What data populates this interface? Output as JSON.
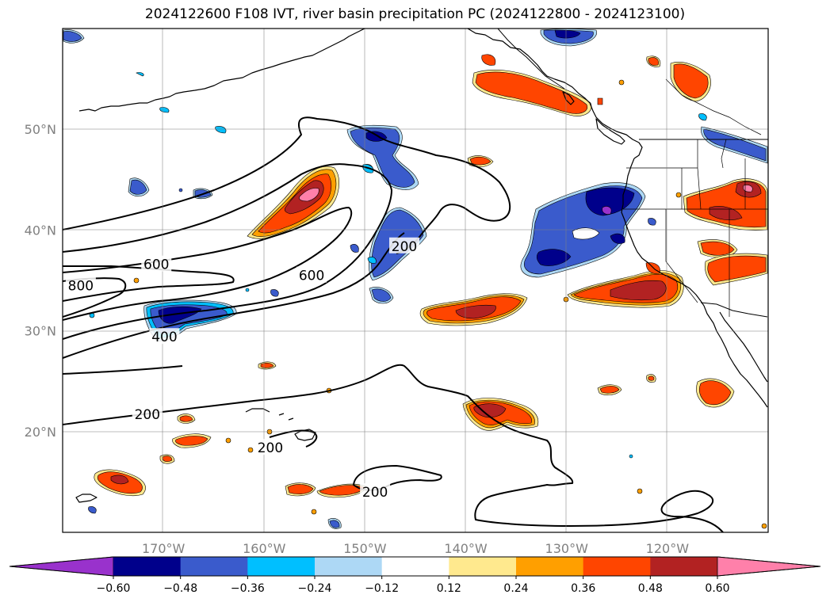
{
  "title": "2024122600 F108 IVT, river basin precipitation PC (2024122800 - 2024123100)",
  "map": {
    "lon_range": [
      -180,
      -110
    ],
    "lat_range": [
      10,
      60
    ],
    "lat_ticks": [
      {
        "value": 20,
        "label": "20°N"
      },
      {
        "value": 30,
        "label": "30°N"
      },
      {
        "value": 40,
        "label": "40°N"
      },
      {
        "value": 50,
        "label": "50°N"
      }
    ],
    "lon_ticks": [
      {
        "value": -170,
        "label": "170°W"
      },
      {
        "value": -160,
        "label": "160°W"
      },
      {
        "value": -150,
        "label": "150°W"
      },
      {
        "value": -140,
        "label": "140°W"
      },
      {
        "value": -130,
        "label": "130°W"
      },
      {
        "value": -120,
        "label": "120°W"
      }
    ],
    "grid": true
  },
  "ivt_contour_labels": [
    {
      "text": "800",
      "lon": -178.2,
      "lat": 34.5
    },
    {
      "text": "600",
      "lon": -170.7,
      "lat": 36.6
    },
    {
      "text": "600",
      "lon": -155.3,
      "lat": 35.5
    },
    {
      "text": "400",
      "lon": -169.9,
      "lat": 29.4
    },
    {
      "text": "200",
      "lon": -146.1,
      "lat": 38.4
    },
    {
      "text": "200",
      "lon": -171.6,
      "lat": 21.7
    },
    {
      "text": "200",
      "lon": -159.4,
      "lat": 18.4
    },
    {
      "text": "200",
      "lon": -149.0,
      "lat": 14.0
    }
  ],
  "colorbar": {
    "colors": [
      "#9932cc",
      "#00008b",
      "#3a5bcc",
      "#00bfff",
      "#add8f5",
      "#ffffff",
      "#ffe98e",
      "#ff9f00",
      "#ff4500",
      "#b22222",
      "#ff80aa"
    ],
    "tick_labels": [
      "−0.60",
      "−0.48",
      "−0.36",
      "−0.24",
      "−0.12",
      "0.12",
      "0.24",
      "0.36",
      "0.48",
      "0.60"
    ],
    "levels": [
      -0.6,
      -0.48,
      -0.36,
      -0.24,
      -0.12,
      0.12,
      0.24,
      0.36,
      0.48,
      0.6
    ],
    "extend": "both"
  }
}
